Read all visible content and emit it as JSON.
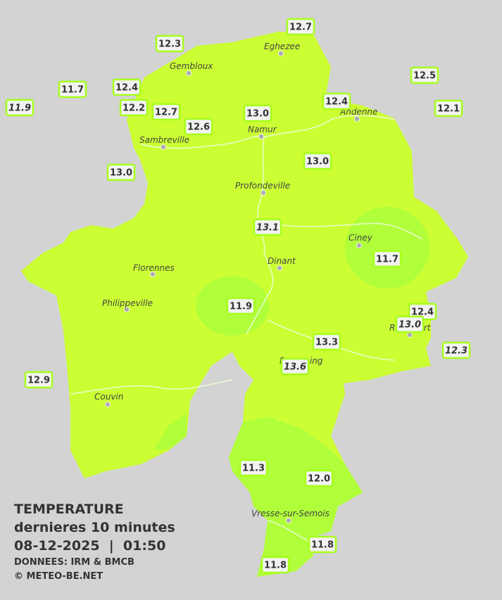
{
  "header": {
    "title": "TEMPERATURE",
    "subtitle": "dernieres 10 minutes",
    "datetime": "08-12-2025  |  01:50",
    "source": "DONNEES: IRM & BMCB",
    "copyright": "© METEO-BE.NET"
  },
  "cities": [
    "Eghezee",
    "Gembloux",
    "Andenne",
    "Namur",
    "Sambreville",
    "Profondeville",
    "Ciney",
    "Dinant",
    "Florennes",
    "Philippeville",
    "Rochefort",
    "Beauraing",
    "Couvin",
    "Vresse-sur-Semois"
  ],
  "readings": [
    "12.7",
    "12.3",
    "11.7",
    "12.4",
    "12.5",
    "11.9",
    "12.2",
    "12.7",
    "13.0",
    "12.4",
    "12.1",
    "12.6",
    "13.0",
    "13.0",
    "13.1",
    "11.7",
    "11.9",
    "12.4",
    "13.0",
    "13.3",
    "12.3",
    "13.6",
    "12.9",
    "11.3",
    "12.0",
    "11.8",
    "11.8"
  ]
}
